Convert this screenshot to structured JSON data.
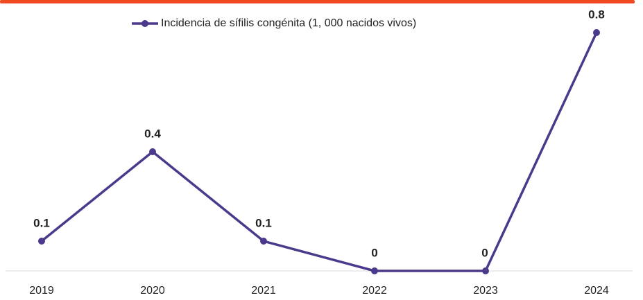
{
  "chart_data": {
    "type": "line",
    "categories": [
      "2019",
      "2020",
      "2021",
      "2022",
      "2023",
      "2024"
    ],
    "series": [
      {
        "name": "Incidencia de sífilis congénita (1, 000 nacidos vivos)",
        "color": "#4b3a8c",
        "values": [
          0.1,
          0.4,
          0.1,
          0,
          0,
          0.8
        ]
      }
    ],
    "ylim": [
      0,
      0.8
    ]
  }
}
